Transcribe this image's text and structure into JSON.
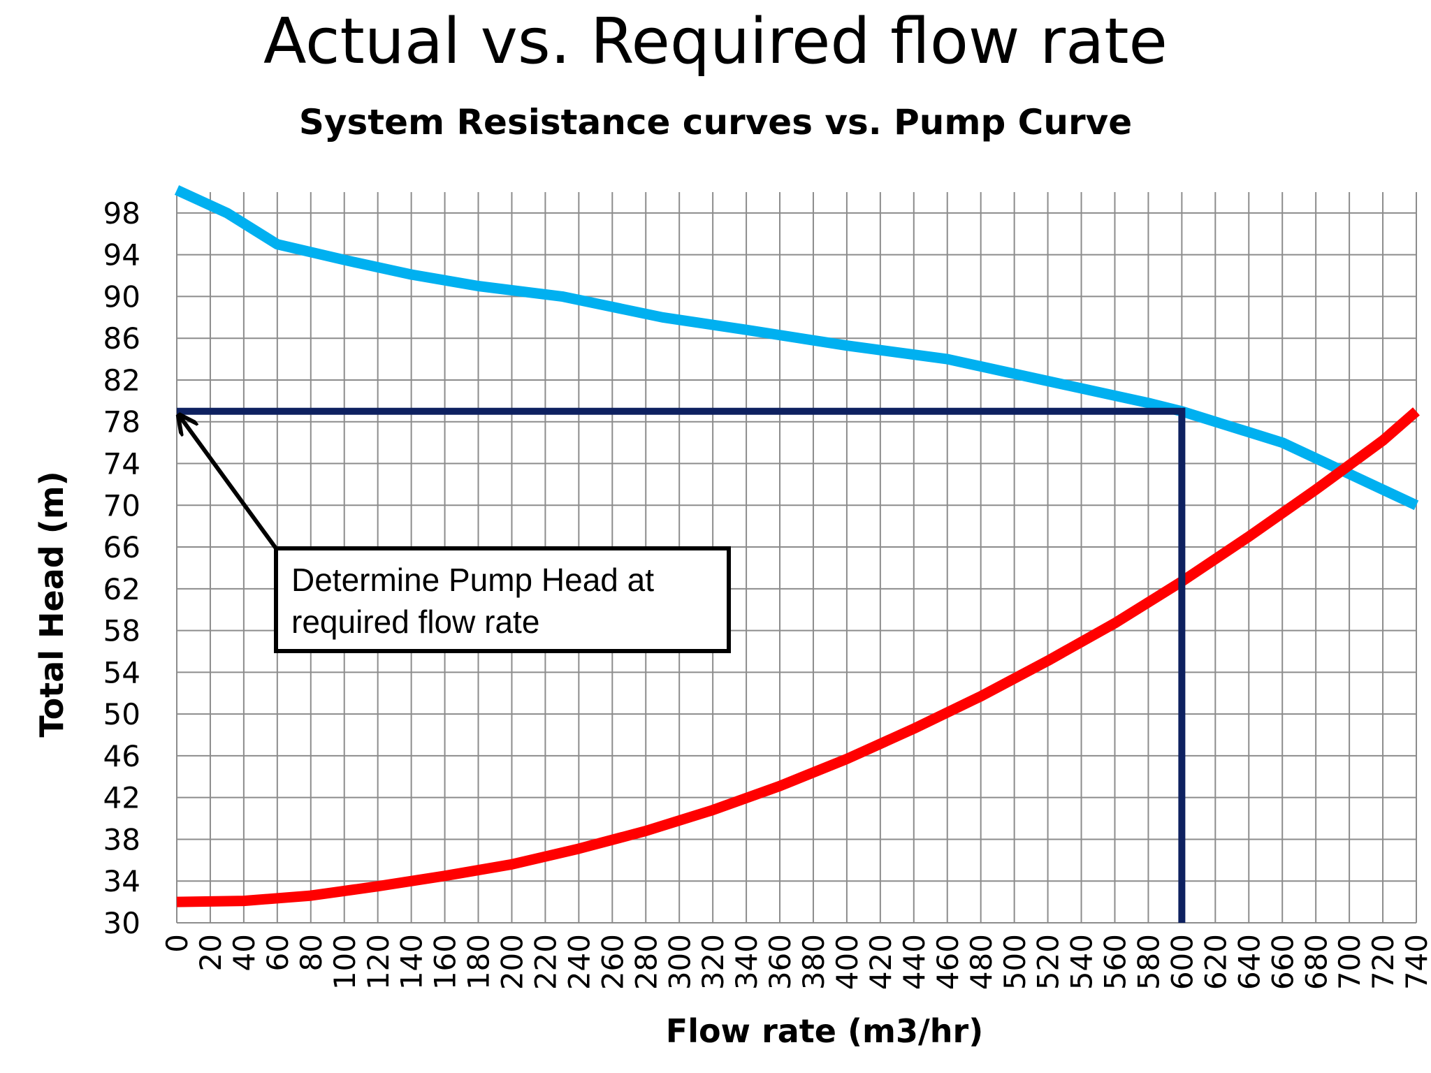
{
  "title": "Actual vs. Required flow rate",
  "subtitle": "System Resistance curves vs. Pump Curve",
  "annotation": {
    "line1": "Determine Pump Head at",
    "line2": "required flow rate"
  },
  "colors": {
    "pump_curve": "#00b0f0",
    "system_curve": "#ff0000",
    "guide_line": "#0e2160",
    "grid": "#8c8c8c"
  },
  "chart_data": {
    "type": "line",
    "xlabel": "Flow rate (m3/hr)",
    "ylabel": "Total Head (m)",
    "xlim": [
      0,
      740
    ],
    "ylim": [
      30,
      100
    ],
    "grid": true,
    "x_ticks": [
      0,
      20,
      40,
      60,
      80,
      100,
      120,
      140,
      160,
      180,
      200,
      220,
      240,
      260,
      280,
      300,
      320,
      340,
      360,
      380,
      400,
      420,
      440,
      460,
      480,
      500,
      520,
      540,
      560,
      580,
      600,
      620,
      640,
      660,
      680,
      700,
      720,
      740
    ],
    "y_ticks": [
      30,
      34,
      38,
      42,
      46,
      50,
      54,
      58,
      62,
      66,
      70,
      74,
      78,
      82,
      86,
      90,
      94,
      98
    ],
    "series": [
      {
        "color": "#00b0f0",
        "x": [
          0,
          30,
          60,
          100,
          140,
          180,
          230,
          290,
          340,
          400,
          460,
          520,
          580,
          600,
          660,
          720,
          740
        ],
        "y": [
          100.2,
          98,
          95,
          93.5,
          92.1,
          91,
          90,
          88,
          86.8,
          85.3,
          84,
          81.9,
          79.8,
          79.0,
          76,
          71.5,
          70
        ]
      },
      {
        "color": "#ff0000",
        "x": [
          0,
          40,
          80,
          120,
          160,
          200,
          240,
          280,
          320,
          360,
          400,
          440,
          480,
          520,
          560,
          600,
          640,
          680,
          720,
          740
        ],
        "y": [
          32,
          32.1,
          32.6,
          33.5,
          34.5,
          35.6,
          37.1,
          38.8,
          40.8,
          43.1,
          45.7,
          48.6,
          51.7,
          55.1,
          58.7,
          62.7,
          67,
          71.5,
          76.2,
          79
        ]
      }
    ],
    "guides": {
      "flow": 600,
      "head": 79
    }
  }
}
